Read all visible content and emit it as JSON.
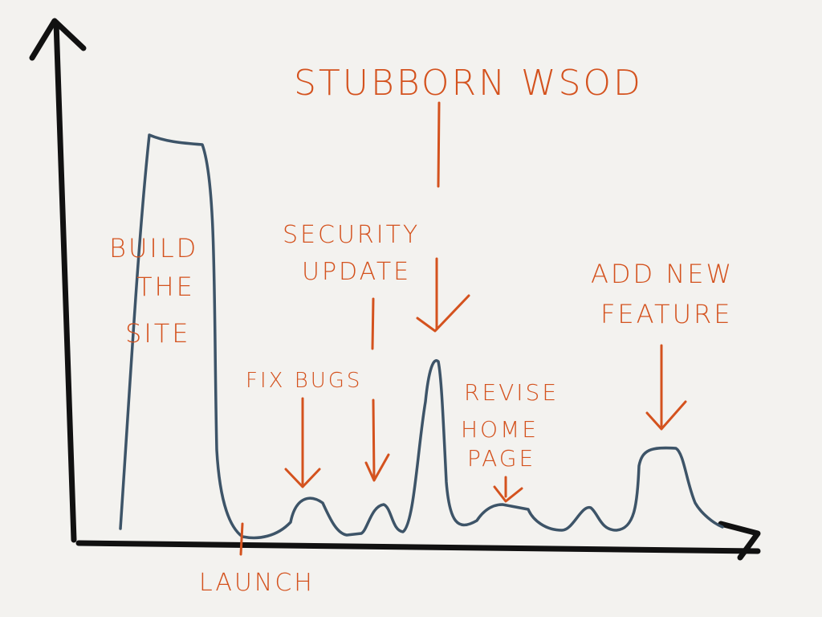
{
  "colors": {
    "background": "#f3f2ef",
    "axis": "#111111",
    "curve": "#3d5468",
    "annotation": "#d4521e"
  },
  "icons": {
    "y_axis": "arrow-up-icon",
    "x_axis": "arrow-right-icon"
  },
  "labels": {
    "build": [
      "BUILD",
      "THE",
      "SITE"
    ],
    "launch": "LAUNCH",
    "fix_bugs": "FIX BUGS",
    "security": [
      "SECURITY",
      "UPDATE"
    ],
    "wsod": "STUBBORN WSOD",
    "revise": [
      "REVISE",
      "HOME",
      "PAGE"
    ],
    "feature": [
      "ADD NEW",
      "FEATURE"
    ]
  }
}
